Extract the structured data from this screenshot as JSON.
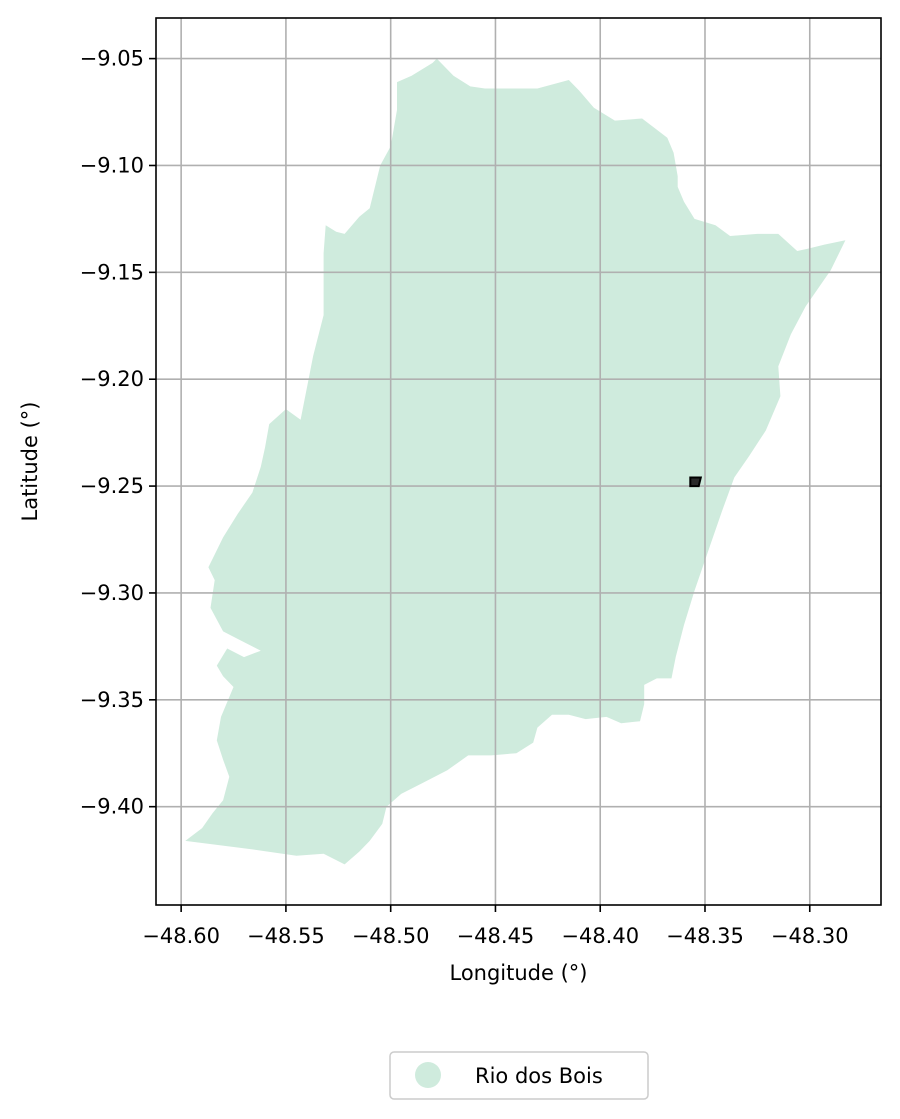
{
  "chart_data": {
    "type": "map",
    "xlabel": "Longitude (°)",
    "ylabel": "Latitude (°)",
    "xlim": [
      -48.612,
      -48.266
    ],
    "ylim": [
      -9.446,
      -9.031
    ],
    "x_ticks": [
      -48.6,
      -48.55,
      -48.5,
      -48.45,
      -48.4,
      -48.35,
      -48.3
    ],
    "x_tick_labels": [
      "−48.60",
      "−48.55",
      "−48.50",
      "−48.45",
      "−48.40",
      "−48.35",
      "−48.30"
    ],
    "y_ticks": [
      -9.05,
      -9.1,
      -9.15,
      -9.2,
      -9.25,
      -9.3,
      -9.35,
      -9.4
    ],
    "y_tick_labels": [
      "−9.05",
      "−9.10",
      "−9.15",
      "−9.20",
      "−9.25",
      "−9.30",
      "−9.35",
      "−9.40"
    ],
    "grid": true,
    "legend_position": "bottom-center",
    "region": {
      "name": "Rio dos Bois",
      "color": "#cfebdd",
      "boundary": [
        [
          -48.598,
          -9.416
        ],
        [
          -48.59,
          -9.41
        ],
        [
          -48.585,
          -9.403
        ],
        [
          -48.58,
          -9.397
        ],
        [
          -48.577,
          -9.386
        ],
        [
          -48.58,
          -9.378
        ],
        [
          -48.583,
          -9.369
        ],
        [
          -48.581,
          -9.358
        ],
        [
          -48.575,
          -9.344
        ],
        [
          -48.58,
          -9.339
        ],
        [
          -48.583,
          -9.334
        ],
        [
          -48.578,
          -9.326
        ],
        [
          -48.57,
          -9.33
        ],
        [
          -48.562,
          -9.327
        ],
        [
          -48.572,
          -9.322
        ],
        [
          -48.58,
          -9.318
        ],
        [
          -48.586,
          -9.307
        ],
        [
          -48.584,
          -9.294
        ],
        [
          -48.587,
          -9.288
        ],
        [
          -48.584,
          -9.282
        ],
        [
          -48.58,
          -9.274
        ],
        [
          -48.573,
          -9.263
        ],
        [
          -48.566,
          -9.253
        ],
        [
          -48.562,
          -9.241
        ],
        [
          -48.56,
          -9.232
        ],
        [
          -48.558,
          -9.221
        ],
        [
          -48.55,
          -9.214
        ],
        [
          -48.543,
          -9.219
        ],
        [
          -48.537,
          -9.189
        ],
        [
          -48.532,
          -9.17
        ],
        [
          -48.532,
          -9.141
        ],
        [
          -48.531,
          -9.128
        ],
        [
          -48.526,
          -9.131
        ],
        [
          -48.522,
          -9.132
        ],
        [
          -48.515,
          -9.124
        ],
        [
          -48.51,
          -9.12
        ],
        [
          -48.505,
          -9.1
        ],
        [
          -48.5,
          -9.091
        ],
        [
          -48.497,
          -9.074
        ],
        [
          -48.497,
          -9.061
        ],
        [
          -48.49,
          -9.058
        ],
        [
          -48.48,
          -9.052
        ],
        [
          -48.478,
          -9.05
        ],
        [
          -48.47,
          -9.058
        ],
        [
          -48.462,
          -9.063
        ],
        [
          -48.455,
          -9.064
        ],
        [
          -48.445,
          -9.064
        ],
        [
          -48.43,
          -9.064
        ],
        [
          -48.415,
          -9.06
        ],
        [
          -48.41,
          -9.065
        ],
        [
          -48.403,
          -9.073
        ],
        [
          -48.393,
          -9.079
        ],
        [
          -48.38,
          -9.078
        ],
        [
          -48.368,
          -9.087
        ],
        [
          -48.365,
          -9.094
        ],
        [
          -48.363,
          -9.105
        ],
        [
          -48.363,
          -9.11
        ],
        [
          -48.36,
          -9.117
        ],
        [
          -48.355,
          -9.125
        ],
        [
          -48.345,
          -9.128
        ],
        [
          -48.338,
          -9.133
        ],
        [
          -48.325,
          -9.132
        ],
        [
          -48.315,
          -9.132
        ],
        [
          -48.306,
          -9.14
        ],
        [
          -48.301,
          -9.139
        ],
        [
          -48.293,
          -9.137
        ],
        [
          -48.283,
          -9.135
        ],
        [
          -48.29,
          -9.149
        ],
        [
          -48.302,
          -9.166
        ],
        [
          -48.309,
          -9.179
        ],
        [
          -48.315,
          -9.194
        ],
        [
          -48.314,
          -9.208
        ],
        [
          -48.321,
          -9.224
        ],
        [
          -48.329,
          -9.236
        ],
        [
          -48.336,
          -9.246
        ],
        [
          -48.342,
          -9.262
        ],
        [
          -48.348,
          -9.279
        ],
        [
          -48.355,
          -9.299
        ],
        [
          -48.36,
          -9.315
        ],
        [
          -48.364,
          -9.33
        ],
        [
          -48.366,
          -9.34
        ],
        [
          -48.373,
          -9.34
        ],
        [
          -48.379,
          -9.343
        ],
        [
          -48.379,
          -9.352
        ],
        [
          -48.381,
          -9.36
        ],
        [
          -48.39,
          -9.361
        ],
        [
          -48.397,
          -9.358
        ],
        [
          -48.407,
          -9.359
        ],
        [
          -48.415,
          -9.357
        ],
        [
          -48.423,
          -9.357
        ],
        [
          -48.43,
          -9.363
        ],
        [
          -48.432,
          -9.37
        ],
        [
          -48.44,
          -9.375
        ],
        [
          -48.452,
          -9.376
        ],
        [
          -48.463,
          -9.376
        ],
        [
          -48.473,
          -9.383
        ],
        [
          -48.485,
          -9.389
        ],
        [
          -48.495,
          -9.394
        ],
        [
          -48.502,
          -9.4
        ],
        [
          -48.504,
          -9.408
        ],
        [
          -48.51,
          -9.416
        ],
        [
          -48.515,
          -9.421
        ],
        [
          -48.522,
          -9.427
        ],
        [
          -48.532,
          -9.422
        ],
        [
          -48.545,
          -9.423
        ],
        [
          -48.566,
          -9.42
        ],
        [
          -48.598,
          -9.416
        ]
      ]
    },
    "marker": {
      "boundary": [
        [
          -48.357,
          -9.246
        ],
        [
          -48.352,
          -9.246
        ],
        [
          -48.353,
          -9.25
        ],
        [
          -48.357,
          -9.25
        ],
        [
          -48.357,
          -9.246
        ]
      ]
    },
    "legend": [
      {
        "label": "Rio dos Bois",
        "color": "#cfebdd"
      }
    ]
  }
}
